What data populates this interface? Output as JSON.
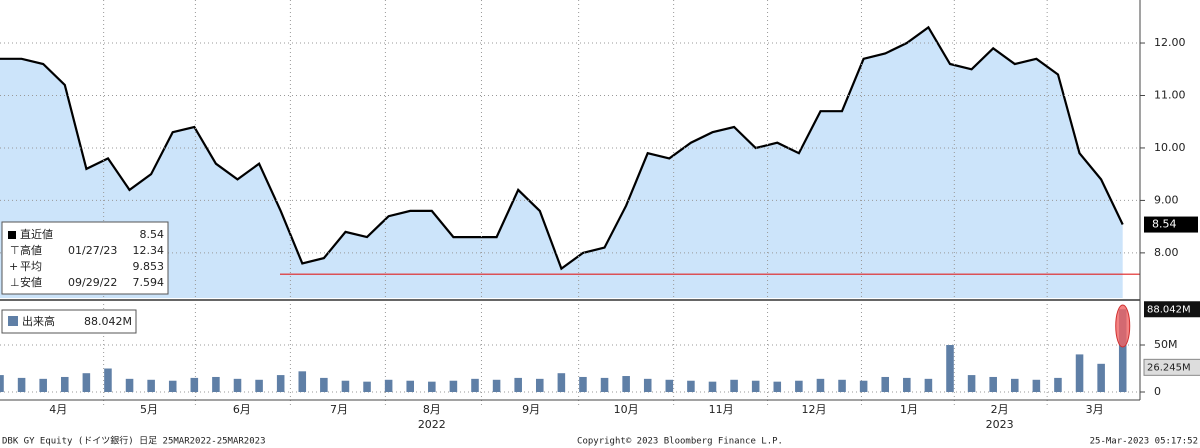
{
  "chart_data": [
    {
      "type": "line",
      "values": [
        11.7,
        11.7,
        11.6,
        11.2,
        9.6,
        9.8,
        9.2,
        9.5,
        10.3,
        10.4,
        9.7,
        9.4,
        9.7,
        8.8,
        7.8,
        7.9,
        8.4,
        8.3,
        8.7,
        8.8,
        8.8,
        8.3,
        8.3,
        8.3,
        9.2,
        8.8,
        7.7,
        8.0,
        8.1,
        8.9,
        9.9,
        9.8,
        10.1,
        10.3,
        10.4,
        10.0,
        10.1,
        9.9,
        10.7,
        10.7,
        11.7,
        11.8,
        12.0,
        12.3,
        11.6,
        11.5,
        11.9,
        11.6,
        11.7,
        11.4,
        9.9,
        9.4,
        8.54
      ],
      "color": "#000000",
      "fill": "#cce4fa",
      "xlim": [
        0,
        52.8
      ],
      "xticks": [
        {
          "value": 2.7,
          "label": "4月"
        },
        {
          "value": 6.9,
          "label": "5月"
        },
        {
          "value": 11.2,
          "label": "6月"
        },
        {
          "value": 15.7,
          "label": "7月"
        },
        {
          "value": 20.0,
          "label": "8月"
        },
        {
          "value": 24.6,
          "label": "9月"
        },
        {
          "value": 29.0,
          "label": "10月"
        },
        {
          "value": 33.4,
          "label": "11月"
        },
        {
          "value": 37.7,
          "label": "12月"
        },
        {
          "value": 42.1,
          "label": "1月"
        },
        {
          "value": 46.3,
          "label": "2月"
        },
        {
          "value": 50.7,
          "label": "3月"
        }
      ],
      "year_labels": [
        {
          "value": 20.0,
          "label": "2022"
        },
        {
          "value": 46.3,
          "label": "2023"
        }
      ],
      "ylim": [
        7.14,
        12.82
      ],
      "yticks": [
        {
          "value": 8,
          "label": "8.00"
        },
        {
          "value": 9,
          "label": "9.00"
        },
        {
          "value": 10,
          "label": "10.00"
        },
        {
          "value": 11,
          "label": "11.00"
        },
        {
          "value": 12,
          "label": "12.00"
        }
      ],
      "grid": true,
      "low_line": 7.594,
      "low_line_color": "#e02020",
      "stats": [
        {
          "name": "直近値",
          "value": 8.54
        },
        {
          "name": "高値",
          "date": "01/27/23",
          "value": 12.34
        },
        {
          "name": "平均",
          "value": 9.853
        },
        {
          "name": "安値",
          "date": "09/29/22",
          "value": 7.594
        }
      ]
    },
    {
      "type": "bar",
      "name": "出来高",
      "values": [
        18,
        15,
        14,
        16,
        20,
        25,
        14,
        13,
        12,
        15,
        16,
        14,
        13,
        18,
        22,
        15,
        12,
        11,
        13,
        12,
        11,
        12,
        14,
        13,
        15,
        14,
        20,
        16,
        15,
        17,
        14,
        13,
        12,
        11,
        13,
        12,
        11,
        12,
        14,
        13,
        12,
        16,
        15,
        14,
        50,
        18,
        16,
        14,
        13,
        15,
        40,
        30,
        88.042
      ],
      "color": "#5f7fa6",
      "ylim": [
        0,
        94.7
      ],
      "yticks": [
        0,
        {
          "value": 50,
          "label": "50M"
        }
      ],
      "last_label": {
        "value": 88.042,
        "label": "88.042M"
      },
      "average": {
        "value": 26.245,
        "label": "26.245M"
      }
    }
  ],
  "footer": {
    "left": "DBK GY Equity (ドイツ銀行) 日足 25MAR2022-25MAR2023",
    "center": "Copyright© 2023 Bloomberg Finance L.P.",
    "right": "25-Mar-2023 05:17:52"
  }
}
